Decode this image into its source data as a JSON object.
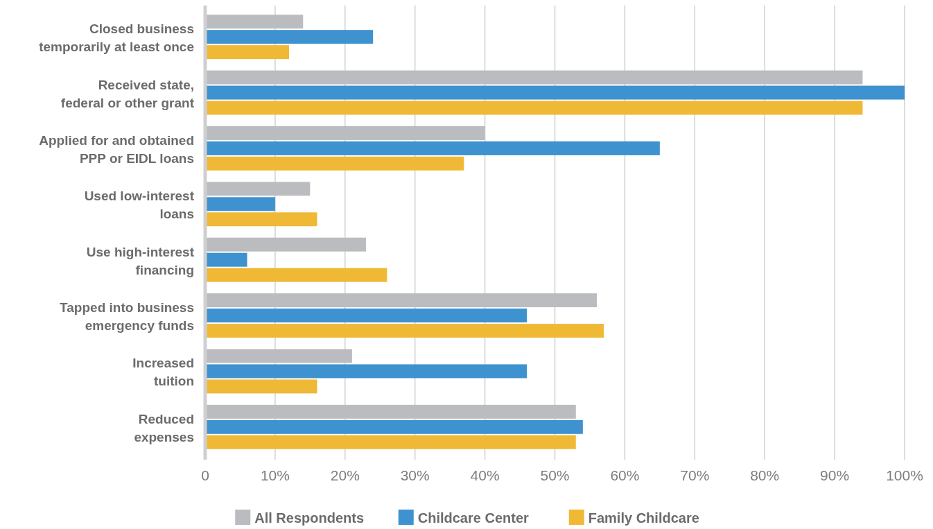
{
  "chart_data": {
    "type": "bar",
    "orientation": "horizontal",
    "categories": [
      "Closed business\ntemporarily at least once",
      "Received state,\nfederal or other grant",
      "Applied for and obtained\nPPP or EIDL loans",
      "Used low-interest\nloans",
      "Use high-interest\nfinancing",
      "Tapped into business\nemergency funds",
      "Increased\ntuition",
      "Reduced\nexpenses"
    ],
    "series": [
      {
        "name": "All Respondents",
        "color": "#bbbcc0",
        "values": [
          14,
          94,
          40,
          15,
          23,
          56,
          21,
          53
        ]
      },
      {
        "name": "Childcare Center",
        "color": "#3e92cf",
        "values": [
          24,
          100,
          65,
          10,
          6,
          46,
          46,
          54
        ]
      },
      {
        "name": "Family Childcare",
        "color": "#f0b935",
        "values": [
          12,
          94,
          37,
          16,
          26,
          57,
          16,
          53
        ]
      }
    ],
    "xlim": [
      0,
      100
    ],
    "xticks": [
      0,
      {
        "value": 10,
        "label": "10%"
      },
      {
        "value": 20,
        "label": "20%"
      },
      {
        "value": 30,
        "label": "30%"
      },
      {
        "value": 40,
        "label": "40%"
      },
      {
        "value": 50,
        "label": "50%"
      },
      {
        "value": 60,
        "label": "60%"
      },
      {
        "value": 70,
        "label": "70%"
      },
      {
        "value": 80,
        "label": "80%"
      },
      {
        "value": 90,
        "label": "90%"
      },
      {
        "value": 100,
        "label": "100%"
      }
    ],
    "grid": "x",
    "legend": "bottom"
  }
}
